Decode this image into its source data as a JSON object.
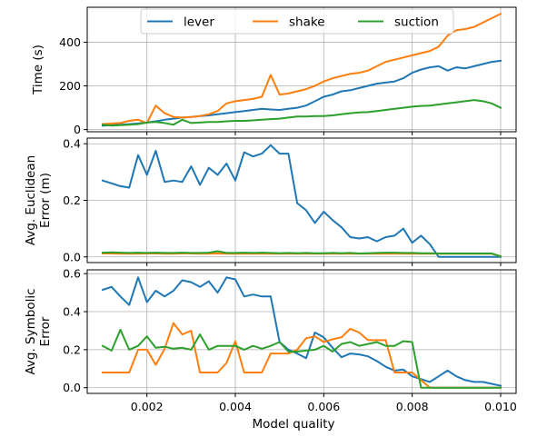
{
  "chart_data": {
    "type": "line",
    "x": [
      0.001,
      0.0012,
      0.0014,
      0.0016,
      0.0018,
      0.002,
      0.0022,
      0.0024,
      0.0026,
      0.0028,
      0.003,
      0.0032,
      0.0034,
      0.0036,
      0.0038,
      0.004,
      0.0042,
      0.0044,
      0.0046,
      0.0048,
      0.005,
      0.0052,
      0.0054,
      0.0056,
      0.0058,
      0.006,
      0.0062,
      0.0064,
      0.0066,
      0.0068,
      0.007,
      0.0072,
      0.0074,
      0.0076,
      0.0078,
      0.008,
      0.0082,
      0.0084,
      0.0086,
      0.0088,
      0.009,
      0.0092,
      0.0094,
      0.0096,
      0.0098,
      0.01
    ],
    "xlabel": "Model quality",
    "x_ticks": [
      "0.002",
      "0.004",
      "0.006",
      "0.008",
      "0.010"
    ],
    "x_tick_values": [
      0.002,
      0.004,
      0.006,
      0.008,
      0.01
    ],
    "xlim": [
      0.00065,
      0.01035
    ],
    "grid": true,
    "legend": {
      "placement": "top-center",
      "entries": [
        "lever",
        "shake",
        "suction"
      ]
    },
    "colors": {
      "lever": "#1f77b4",
      "shake": "#ff7f0e",
      "suction": "#2ca02c"
    },
    "panels": [
      {
        "ylabel": [
          "Time (s)"
        ],
        "ylim": [
          -10,
          560
        ],
        "y_ticks": [
          "0",
          "200",
          "400"
        ],
        "y_tick_values": [
          0,
          200,
          400
        ],
        "series": [
          {
            "name": "lever",
            "values": [
              18,
              20,
              22,
              25,
              28,
              32,
              38,
              45,
              50,
              55,
              58,
              62,
              65,
              70,
              75,
              80,
              85,
              90,
              95,
              92,
              90,
              95,
              100,
              110,
              130,
              150,
              160,
              175,
              180,
              190,
              200,
              210,
              215,
              220,
              235,
              260,
              275,
              285,
              290,
              270,
              285,
              280,
              290,
              300,
              310,
              315
            ]
          },
          {
            "name": "shake",
            "values": [
              25,
              28,
              30,
              40,
              45,
              30,
              110,
              75,
              58,
              55,
              58,
              62,
              70,
              85,
              120,
              130,
              135,
              140,
              150,
              250,
              160,
              165,
              175,
              185,
              200,
              220,
              235,
              245,
              255,
              260,
              270,
              290,
              310,
              320,
              330,
              340,
              350,
              360,
              380,
              430,
              455,
              460,
              470,
              490,
              510,
              530
            ]
          },
          {
            "name": "suction",
            "values": [
              22,
              18,
              20,
              22,
              25,
              32,
              35,
              30,
              22,
              45,
              30,
              32,
              35,
              35,
              38,
              40,
              40,
              42,
              45,
              48,
              50,
              55,
              60,
              60,
              62,
              62,
              65,
              70,
              75,
              78,
              80,
              85,
              90,
              95,
              100,
              105,
              108,
              110,
              115,
              120,
              125,
              130,
              135,
              130,
              120,
              100
            ]
          }
        ]
      },
      {
        "ylabel": [
          "Avg. Euclidean",
          "Error (m)"
        ],
        "ylim": [
          -0.02,
          0.42
        ],
        "y_ticks": [
          "0.0",
          "0.2",
          "0.4"
        ],
        "y_tick_values": [
          0,
          0.2,
          0.4
        ],
        "series": [
          {
            "name": "lever",
            "values": [
              0.27,
              0.26,
              0.25,
              0.245,
              0.36,
              0.29,
              0.375,
              0.265,
              0.27,
              0.265,
              0.32,
              0.255,
              0.315,
              0.29,
              0.33,
              0.27,
              0.37,
              0.355,
              0.365,
              0.395,
              0.365,
              0.365,
              0.19,
              0.165,
              0.12,
              0.16,
              0.13,
              0.105,
              0.07,
              0.065,
              0.07,
              0.055,
              0.07,
              0.075,
              0.1,
              0.05,
              0.075,
              0.045,
              0.0,
              0.0,
              0.0,
              0.0,
              0.0,
              0.0,
              0.0,
              0.0
            ]
          },
          {
            "name": "shake",
            "values": [
              0.012,
              0.012,
              0.011,
              0.011,
              0.011,
              0.012,
              0.012,
              0.011,
              0.011,
              0.012,
              0.012,
              0.011,
              0.011,
              0.012,
              0.011,
              0.011,
              0.011,
              0.011,
              0.011,
              0.011,
              0.011,
              0.011,
              0.011,
              0.011,
              0.011,
              0.011,
              0.011,
              0.011,
              0.011,
              0.011,
              0.011,
              0.011,
              0.011,
              0.011,
              0.011,
              0.011,
              0.011,
              0.011,
              0.011,
              0.011,
              0.011,
              0.011,
              0.011,
              0.011,
              0.011,
              0.002
            ]
          },
          {
            "name": "suction",
            "values": [
              0.015,
              0.016,
              0.015,
              0.014,
              0.015,
              0.014,
              0.015,
              0.014,
              0.014,
              0.015,
              0.014,
              0.014,
              0.015,
              0.02,
              0.014,
              0.014,
              0.015,
              0.014,
              0.015,
              0.014,
              0.013,
              0.014,
              0.013,
              0.014,
              0.013,
              0.013,
              0.014,
              0.013,
              0.014,
              0.012,
              0.013,
              0.014,
              0.015,
              0.015,
              0.014,
              0.014,
              0.013,
              0.013,
              0.012,
              0.012,
              0.012,
              0.012,
              0.012,
              0.012,
              0.012,
              0.002
            ]
          }
        ]
      },
      {
        "ylabel": [
          "Avg. Symbolic",
          "Error"
        ],
        "ylim": [
          -0.03,
          0.62
        ],
        "y_ticks": [
          "0.0",
          "0.2",
          "0.4",
          "0.6"
        ],
        "y_tick_values": [
          0,
          0.2,
          0.4,
          0.6
        ],
        "series": [
          {
            "name": "lever",
            "values": [
              0.515,
              0.53,
              0.48,
              0.435,
              0.58,
              0.45,
              0.51,
              0.48,
              0.51,
              0.565,
              0.555,
              0.53,
              0.56,
              0.5,
              0.58,
              0.57,
              0.48,
              0.49,
              0.48,
              0.48,
              0.24,
              0.2,
              0.18,
              0.155,
              0.29,
              0.265,
              0.21,
              0.16,
              0.18,
              0.175,
              0.165,
              0.14,
              0.11,
              0.09,
              0.095,
              0.06,
              0.045,
              0.03,
              0.06,
              0.09,
              0.06,
              0.04,
              0.03,
              0.03,
              0.02,
              0.01
            ]
          },
          {
            "name": "shake",
            "values": [
              0.08,
              0.08,
              0.08,
              0.08,
              0.2,
              0.2,
              0.12,
              0.205,
              0.34,
              0.28,
              0.3,
              0.08,
              0.08,
              0.08,
              0.13,
              0.245,
              0.08,
              0.08,
              0.08,
              0.18,
              0.18,
              0.18,
              0.2,
              0.26,
              0.27,
              0.24,
              0.255,
              0.265,
              0.31,
              0.29,
              0.25,
              0.25,
              0.25,
              0.08,
              0.08,
              0.08,
              0.04,
              0.0,
              0.0,
              0.0,
              0.0,
              0.0,
              0.0,
              0.0,
              0.0,
              0.0
            ]
          },
          {
            "name": "suction",
            "values": [
              0.22,
              0.195,
              0.305,
              0.2,
              0.22,
              0.27,
              0.21,
              0.215,
              0.205,
              0.21,
              0.2,
              0.28,
              0.2,
              0.22,
              0.22,
              0.22,
              0.2,
              0.22,
              0.205,
              0.22,
              0.24,
              0.19,
              0.19,
              0.195,
              0.2,
              0.22,
              0.19,
              0.23,
              0.24,
              0.22,
              0.23,
              0.24,
              0.22,
              0.22,
              0.245,
              0.24,
              0.0,
              0.0,
              0.0,
              0.0,
              0.0,
              0.0,
              0.0,
              0.0,
              0.0,
              0.0
            ]
          }
        ]
      }
    ]
  }
}
